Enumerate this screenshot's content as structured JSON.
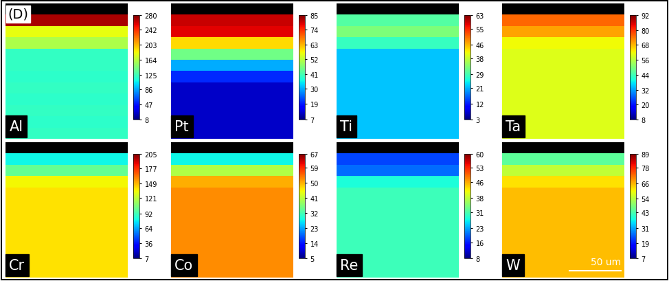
{
  "panel_label": "(D)",
  "scale_bar": "50 um",
  "chart_data": [
    {
      "type": "heatmap",
      "title": "Al",
      "tick_labels": false,
      "cells": [
        [
          null
        ],
        [
          270
        ],
        [
          180
        ],
        [
          160
        ],
        [
          120
        ],
        [
          120
        ],
        [
          118
        ],
        [
          120
        ],
        [
          118
        ],
        [
          120
        ],
        [
          118
        ],
        [
          120
        ]
      ],
      "colorbar_range": [
        8,
        280
      ],
      "colorbar_ticks": [
        8,
        47,
        86,
        125,
        164,
        203,
        242,
        280
      ]
    },
    {
      "type": "heatmap",
      "title": "Pt",
      "tick_labels": false,
      "cells": [
        [
          null
        ],
        [
          80
        ],
        [
          78
        ],
        [
          60
        ],
        [
          45
        ],
        [
          30
        ],
        [
          20
        ],
        [
          12
        ],
        [
          12
        ],
        [
          12
        ],
        [
          12
        ],
        [
          12
        ]
      ],
      "colorbar_range": [
        7,
        85
      ],
      "colorbar_ticks": [
        7,
        19,
        30,
        41,
        52,
        63,
        74,
        85
      ]
    },
    {
      "type": "heatmap",
      "title": "Ti",
      "tick_labels": false,
      "cells": [
        [
          null
        ],
        [
          30
        ],
        [
          33
        ],
        [
          28
        ],
        [
          22
        ],
        [
          22
        ],
        [
          22
        ],
        [
          22
        ],
        [
          22
        ],
        [
          22
        ],
        [
          22
        ],
        [
          22
        ]
      ],
      "colorbar_range": [
        3,
        63
      ],
      "colorbar_ticks": [
        3,
        12,
        21,
        29,
        38,
        46,
        55,
        63
      ]
    },
    {
      "type": "heatmap",
      "title": "Ta",
      "tick_labels": false,
      "cells": [
        [
          null
        ],
        [
          75
        ],
        [
          70
        ],
        [
          62
        ],
        [
          60
        ],
        [
          60
        ],
        [
          60
        ],
        [
          60
        ],
        [
          60
        ],
        [
          60
        ],
        [
          60
        ],
        [
          60
        ]
      ],
      "colorbar_range": [
        8,
        92
      ],
      "colorbar_ticks": [
        8,
        20,
        32,
        44,
        56,
        68,
        80,
        92
      ]
    },
    {
      "type": "heatmap",
      "title": "Cr",
      "tick_labels": false,
      "cells": [
        [
          null
        ],
        [
          80
        ],
        [
          100
        ],
        [
          135
        ],
        [
          140
        ],
        [
          140
        ],
        [
          140
        ],
        [
          140
        ],
        [
          140
        ],
        [
          140
        ],
        [
          140
        ],
        [
          140
        ]
      ],
      "colorbar_range": [
        7,
        205
      ],
      "colorbar_ticks": [
        7,
        36,
        64,
        92,
        121,
        149,
        177,
        205
      ]
    },
    {
      "type": "heatmap",
      "title": "Co",
      "tick_labels": false,
      "cells": [
        [
          null
        ],
        [
          28
        ],
        [
          40
        ],
        [
          50
        ],
        [
          52
        ],
        [
          52
        ],
        [
          52
        ],
        [
          52
        ],
        [
          52
        ],
        [
          52
        ],
        [
          52
        ],
        [
          52
        ]
      ],
      "colorbar_range": [
        5,
        67
      ],
      "colorbar_ticks": [
        5,
        14,
        23,
        32,
        41,
        50,
        59,
        67
      ]
    },
    {
      "type": "heatmap",
      "title": "Re",
      "tick_labels": false,
      "cells": [
        [
          null
        ],
        [
          18
        ],
        [
          20
        ],
        [
          28
        ],
        [
          30
        ],
        [
          30
        ],
        [
          30
        ],
        [
          30
        ],
        [
          30
        ],
        [
          30
        ],
        [
          30
        ],
        [
          30
        ]
      ],
      "colorbar_range": [
        8,
        60
      ],
      "colorbar_ticks": [
        8,
        16,
        23,
        31,
        38,
        46,
        53,
        60
      ]
    },
    {
      "type": "heatmap",
      "title": "W",
      "tick_labels": false,
      "cells": [
        [
          null
        ],
        [
          45
        ],
        [
          55
        ],
        [
          62
        ],
        [
          65
        ],
        [
          65
        ],
        [
          65
        ],
        [
          65
        ],
        [
          65
        ],
        [
          65
        ],
        [
          65
        ],
        [
          65
        ]
      ],
      "colorbar_range": [
        7,
        89
      ],
      "colorbar_ticks": [
        7,
        19,
        31,
        43,
        54,
        66,
        78,
        89
      ]
    }
  ]
}
